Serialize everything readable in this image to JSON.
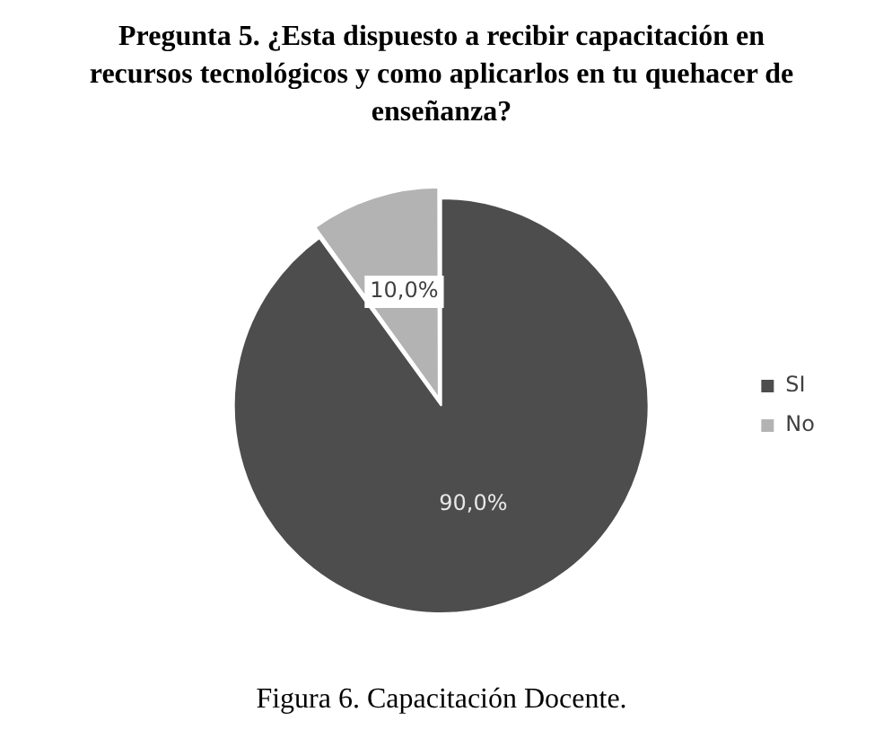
{
  "chart_data": {
    "type": "pie",
    "title": "Pregunta 5. ¿Esta dispuesto a recibir capacitación en recursos tecnológicos y como aplicarlos en tu quehacer de enseñanza?",
    "categories": [
      "SI",
      "No"
    ],
    "values": [
      90,
      10
    ],
    "colors": [
      "#4d4d4d",
      "#b3b3b3"
    ],
    "value_labels": [
      "90,0%",
      "10,0%"
    ],
    "legend": "right",
    "annotations": [
      "Figura 6. Capacitación Docente."
    ]
  }
}
